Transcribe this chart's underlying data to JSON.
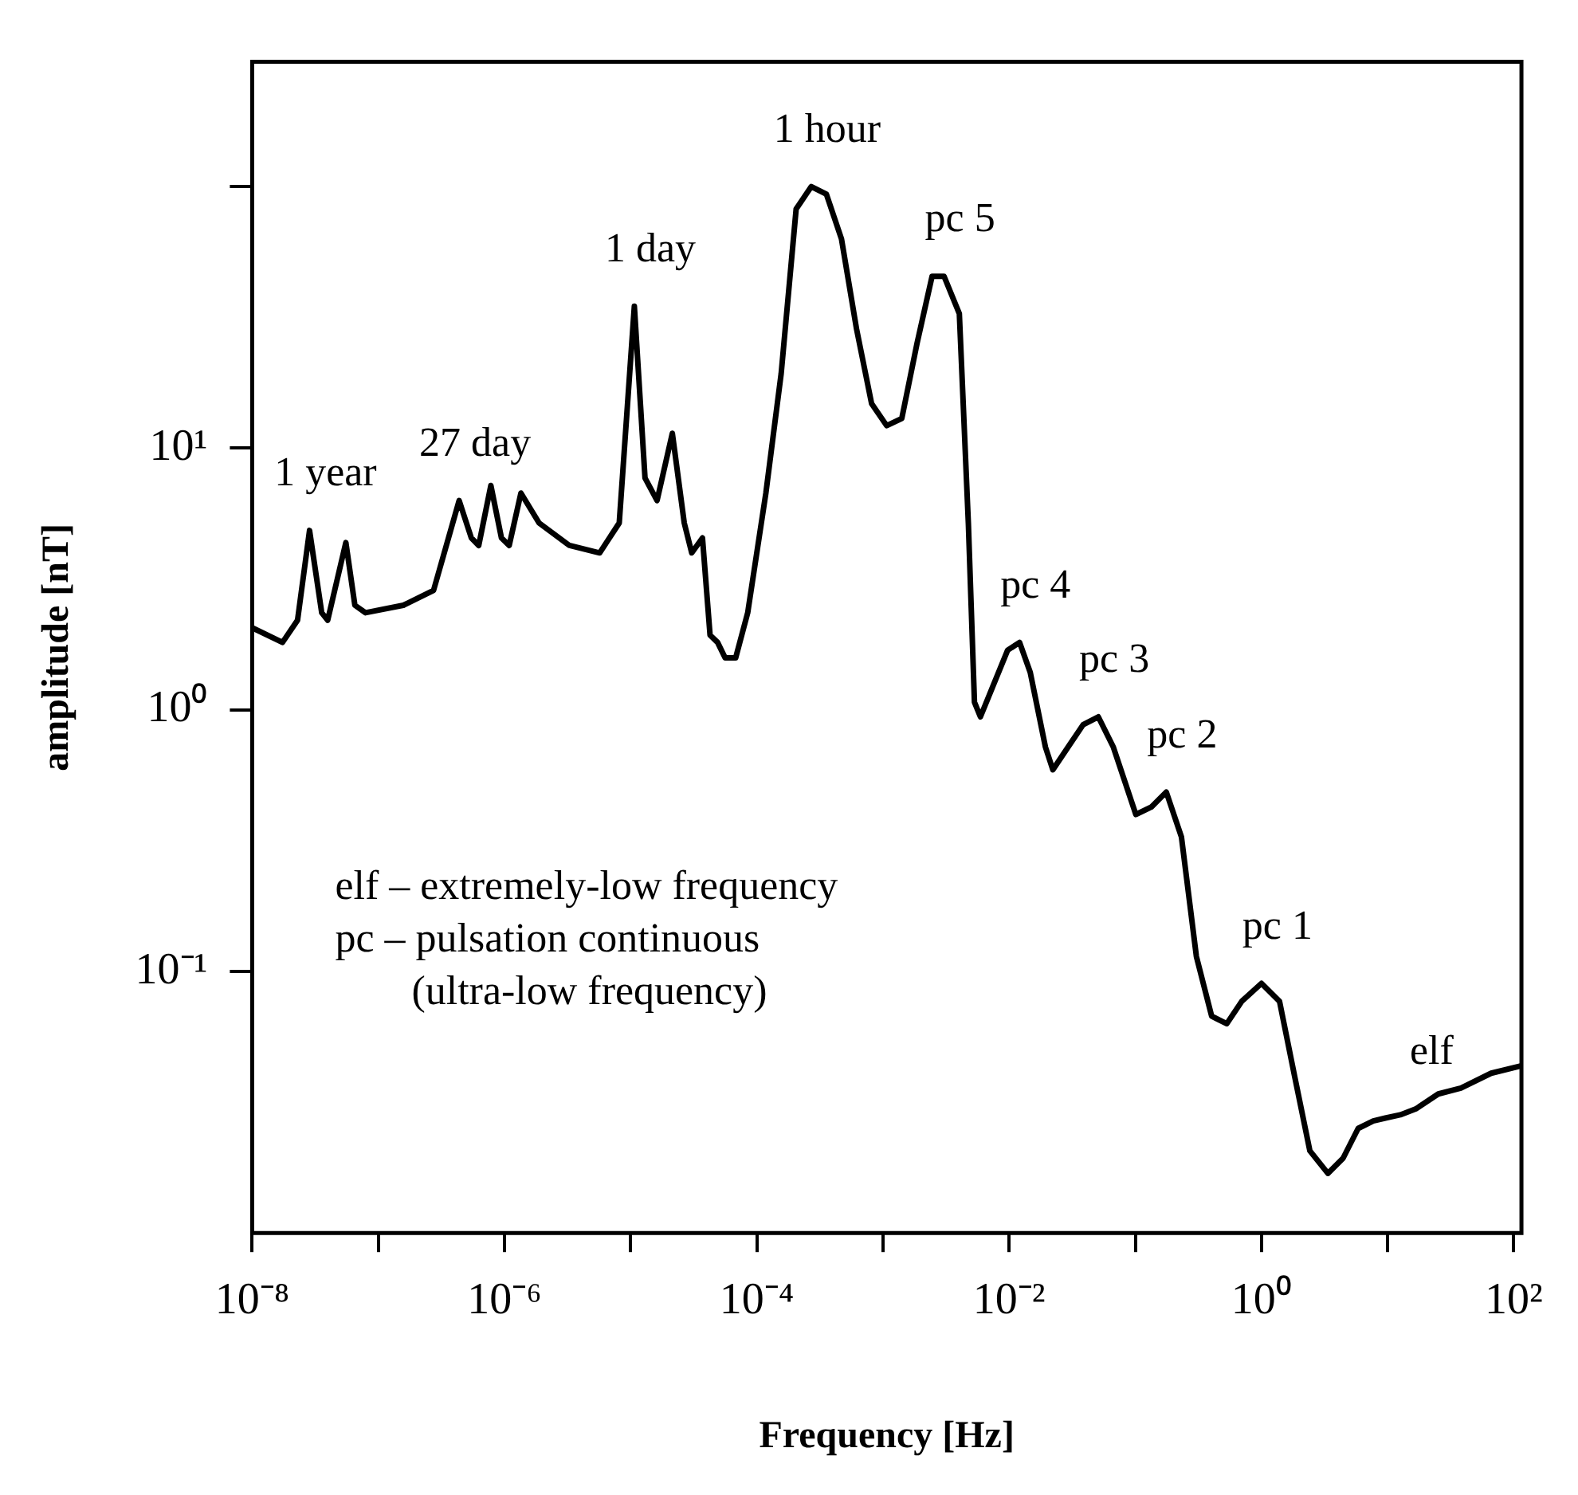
{
  "chart_data": {
    "type": "line",
    "xlabel": "Frequency [Hz]",
    "ylabel": "amplitude [nT]",
    "log": "xy",
    "grid": false,
    "legend": false,
    "marker": "none",
    "line_style": "solid",
    "xlim": [
      1e-08,
      115
    ],
    "ylim": [
      0.01,
      300
    ],
    "xticks": [
      {
        "value": 1e-08,
        "label": "10⁻⁸"
      },
      {
        "value": 1e-07,
        "label": null
      },
      {
        "value": 1e-06,
        "label": "10⁻⁶"
      },
      {
        "value": 1e-05,
        "label": null
      },
      {
        "value": 0.0001,
        "label": "10⁻⁴"
      },
      {
        "value": 0.001,
        "label": null
      },
      {
        "value": 0.01,
        "label": "10⁻²"
      },
      {
        "value": 0.1,
        "label": null
      },
      {
        "value": 1,
        "label": "10⁰"
      },
      {
        "value": 10,
        "label": null
      },
      {
        "value": 100,
        "label": "10²"
      }
    ],
    "yticks": [
      {
        "value": 0.1,
        "label": "10⁻¹"
      },
      {
        "value": 1,
        "label": "10⁰"
      },
      {
        "value": 10,
        "label": "10¹"
      },
      {
        "value": 100,
        "label": null
      }
    ],
    "series": [
      {
        "color": "#000000",
        "x": [
          1e-08,
          1.74e-08,
          2.29e-08,
          2.85e-08,
          3.56e-08,
          3.97e-08,
          5.53e-08,
          6.52e-08,
          7.91e-08,
          1.58e-07,
          2.74e-07,
          3.6e-07,
          4.37e-07,
          5.46e-07,
          6.25e-07,
          7.8e-07,
          9.46e-07,
          1.09e-06,
          1.35e-06,
          1.88e-06,
          3.27e-06,
          5.68e-06,
          8.12e-06,
          1.07e-05,
          1.3e-05,
          1.62e-05,
          2.14e-05,
          2.66e-05,
          3.05e-05,
          3.71e-05,
          4.26e-05,
          4.89e-05,
          5.61e-05,
          6.8e-05,
          8.47e-05,
          0.000118,
          0.000156,
          0.000205,
          0.00027,
          0.000356,
          0.000469,
          0.000617,
          0.000813,
          0.00107,
          0.00141,
          0.00186,
          0.00245,
          0.00305,
          0.00403,
          0.00475,
          0.00531,
          0.00592,
          0.00738,
          0.00973,
          0.0121,
          0.0147,
          0.0194,
          0.0222,
          0.0293,
          0.0386,
          0.0509,
          0.067,
          0.101,
          0.134,
          0.176,
          0.232,
          0.305,
          0.403,
          0.531,
          0.699,
          1.0,
          1.39,
          1.83,
          2.42,
          3.36,
          4.43,
          5.84,
          7.69,
          9.59,
          12.6,
          16.7,
          25.2,
          38.1,
          66.1,
          115
        ],
        "values": [
          2.06,
          1.81,
          2.2,
          4.85,
          2.35,
          2.2,
          4.36,
          2.51,
          2.35,
          2.51,
          2.86,
          4.54,
          6.31,
          4.54,
          4.25,
          7.2,
          4.54,
          4.25,
          6.74,
          5.18,
          4.25,
          3.98,
          5.18,
          34.9,
          7.69,
          6.31,
          11.4,
          5.18,
          3.98,
          4.54,
          1.93,
          1.81,
          1.58,
          1.58,
          2.35,
          6.74,
          19.3,
          82.1,
          100,
          93.6,
          63.1,
          28.6,
          14.8,
          12.2,
          13.0,
          25.1,
          45.4,
          45.4,
          32.7,
          5.18,
          1.07,
          0.94,
          1.22,
          1.69,
          1.81,
          1.39,
          0.72,
          0.59,
          0.72,
          0.877,
          0.94,
          0.72,
          0.398,
          0.425,
          0.485,
          0.327,
          0.114,
          0.0674,
          0.0631,
          0.0769,
          0.09,
          0.0769,
          0.0398,
          0.0206,
          0.0169,
          0.0193,
          0.0251,
          0.0268,
          0.0275,
          0.0283,
          0.0298,
          0.034,
          0.0358,
          0.0408,
          0.0436
        ]
      }
    ],
    "annotations": [
      {
        "text": "1 year",
        "x": 2.85e-08,
        "y": 4.85
      },
      {
        "text": "27 day",
        "x": 4.37e-07,
        "y": 6.31
      },
      {
        "text": "1 day",
        "x": 1.07e-05,
        "y": 34.9
      },
      {
        "text": "1 hour",
        "x": 0.00027,
        "y": 100
      },
      {
        "text": "pc 5",
        "x": 0.00305,
        "y": 45.4
      },
      {
        "text": "pc 4",
        "x": 0.0121,
        "y": 1.81
      },
      {
        "text": "pc 3",
        "x": 0.0509,
        "y": 0.94
      },
      {
        "text": "pc 2",
        "x": 0.176,
        "y": 0.485
      },
      {
        "text": "pc 1",
        "x": 1.0,
        "y": 0.09
      },
      {
        "text": "elf",
        "x": 16.7,
        "y": 0.0298
      },
      "elf – extremely-low frequency",
      "pc – pulsation continuous",
      "(ultra-low frequency)"
    ]
  }
}
